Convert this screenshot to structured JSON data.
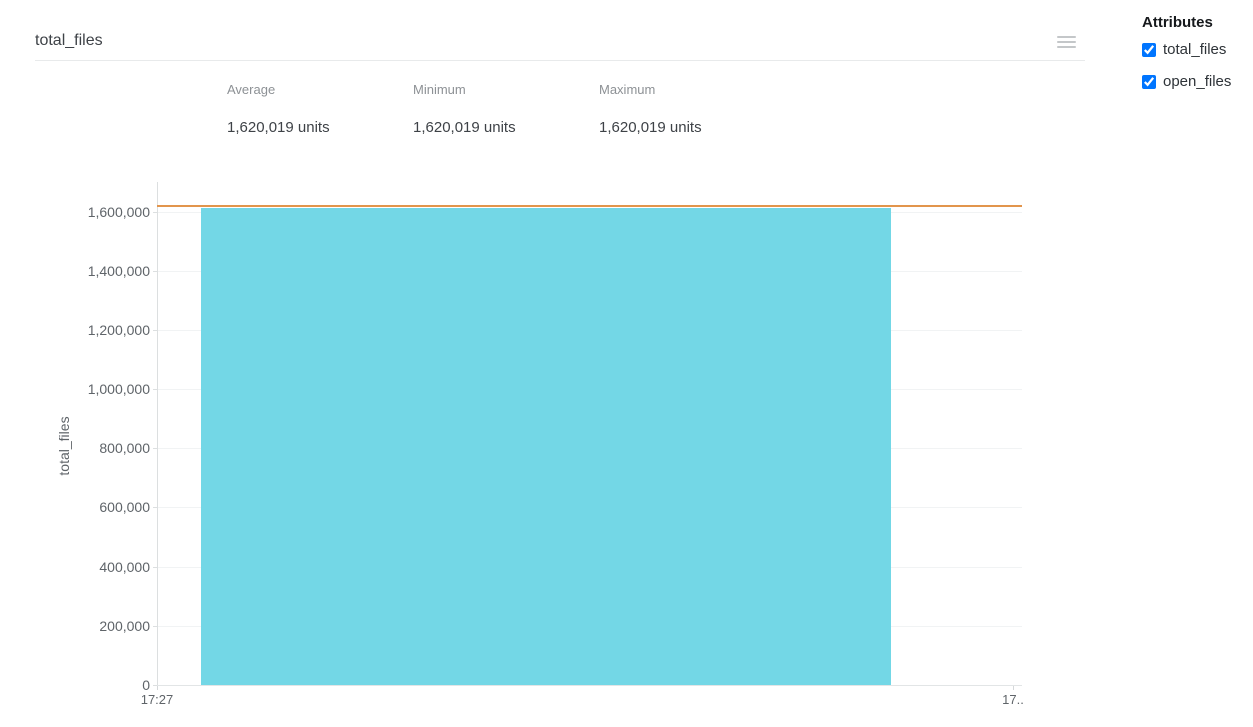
{
  "card": {
    "title": "total_files",
    "stats": [
      {
        "label": "Average",
        "value": "1,620,019 units"
      },
      {
        "label": "Minimum",
        "value": "1,620,019 units"
      },
      {
        "label": "Maximum",
        "value": "1,620,019 units"
      }
    ]
  },
  "attributes_panel": {
    "title": "Attributes",
    "items": [
      {
        "label": "total_files",
        "checked": true
      },
      {
        "label": "open_files",
        "checked": true
      }
    ]
  },
  "chart_data": {
    "type": "area",
    "title": "total_files",
    "ylabel": "total_files",
    "xlabel": "",
    "grid": true,
    "legend": "none",
    "ylim": [
      0,
      1700000
    ],
    "yticks": [
      0,
      200000,
      400000,
      600000,
      800000,
      1000000,
      1200000,
      1400000,
      1600000
    ],
    "ytick_labels": [
      "0",
      "200,000",
      "400,000",
      "600,000",
      "800,000",
      "1,000,000",
      "1,200,000",
      "1,400,000",
      "1,600,000"
    ],
    "xticks": [
      {
        "label": "17:27",
        "frac": 0
      },
      {
        "label": "17..",
        "frac": 0.99
      }
    ],
    "series": [
      {
        "name": "total_files",
        "type": "area",
        "color": "#73d7e6",
        "value": 1620019,
        "x_start_frac": 0.051,
        "x_end_frac": 0.849
      },
      {
        "name": "open_files",
        "type": "line",
        "color": "#e2954c",
        "value": 1620019,
        "x_start_frac": 0,
        "x_end_frac": 1
      }
    ]
  }
}
